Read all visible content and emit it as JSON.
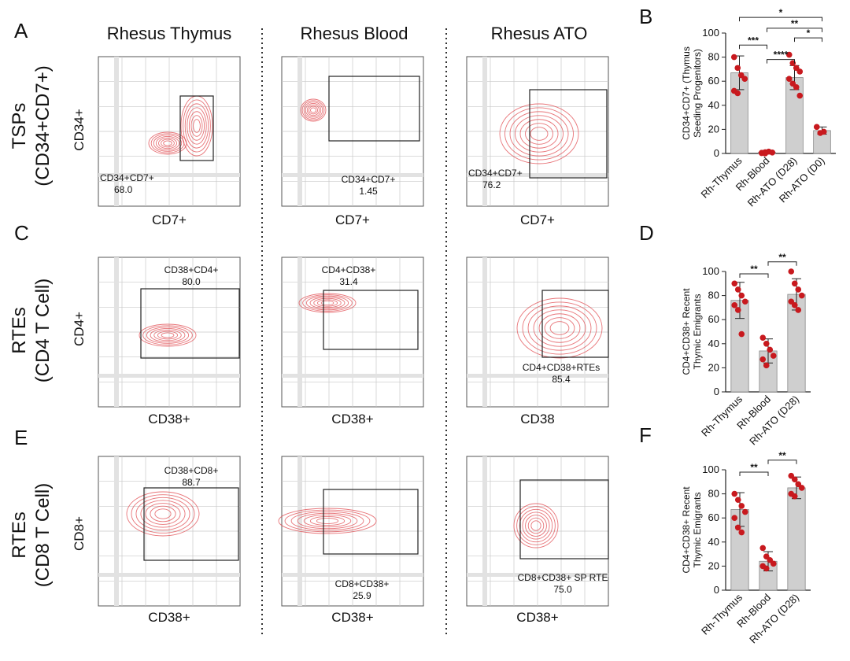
{
  "figure": {
    "columns": [
      "Rhesus Thymus",
      "Rhesus Blood",
      "Rhesus ATO"
    ],
    "panels": {
      "a": "A",
      "b": "B",
      "c": "C",
      "d": "D",
      "e": "E",
      "f": "F"
    },
    "rows": [
      {
        "line1": "TSPs",
        "line2": "(CD34+CD7+)",
        "ylabel": "CD34+"
      },
      {
        "line1": "RTEs",
        "line2": "(CD4 T Cell)",
        "ylabel": "CD4+"
      },
      {
        "line1": "RTEs",
        "line2": "(CD8 T Cell)",
        "ylabel": "CD8+"
      }
    ],
    "flow_xlabels": [
      [
        "CD7+",
        "CD7+",
        "CD7+"
      ],
      [
        "CD38+",
        "CD38+",
        "CD38"
      ],
      [
        "CD38+",
        "CD38+",
        "CD38+"
      ]
    ],
    "gates": [
      [
        {
          "name": "CD34+CD7+",
          "value": "68.0"
        },
        {
          "name": "CD34+CD7+",
          "value": "1.45"
        },
        {
          "name": "CD34+CD7+",
          "value": "76.2"
        }
      ],
      [
        {
          "name": "CD38+CD4+",
          "value": "80.0"
        },
        {
          "name": "CD4+CD38+",
          "value": "31.4"
        },
        {
          "name": "CD4+CD38+RTEs",
          "value": "85.4"
        }
      ],
      [
        {
          "name": "CD38+CD8+",
          "value": "88.7"
        },
        {
          "name": "CD8+CD38+",
          "value": "25.9"
        },
        {
          "name": "CD8+CD38+ SP RTE",
          "value": "75.0"
        }
      ]
    ],
    "colors": {
      "contour": "#e0474c",
      "dot": "#c8191e",
      "bar": "#cfcfcf",
      "grid": "#c8c8c8"
    }
  },
  "chart_data": [
    {
      "id": "B",
      "type": "bar",
      "categories": [
        "Rh-Thymus",
        "Rh-Blood",
        "Rh-ATO (D28)",
        "Rh-ATO (D0)"
      ],
      "values": [
        67,
        1,
        63,
        19
      ],
      "errors": [
        14,
        1.5,
        10,
        3
      ],
      "points": [
        [
          80,
          71,
          65,
          62,
          52,
          50
        ],
        [
          0.5,
          1,
          1.5,
          0.8,
          0.3,
          0
        ],
        [
          82,
          75,
          71,
          68,
          62,
          58,
          55,
          48
        ],
        [
          22,
          17,
          18
        ]
      ],
      "ylabel": "CD34+CD7+ (Thymus Seeding Progenitors)",
      "ylim": [
        0,
        100
      ],
      "yticks": [
        "0",
        "20",
        "40",
        "60",
        "80",
        "100"
      ],
      "significance": [
        {
          "from": 0,
          "to": 1,
          "label": "***",
          "level": 90
        },
        {
          "from": 1,
          "to": 2,
          "label": "****",
          "level": 78
        },
        {
          "from": 0,
          "to": 3,
          "label": "*",
          "level": 113
        },
        {
          "from": 1,
          "to": 3,
          "label": "**",
          "level": 104
        },
        {
          "from": 2,
          "to": 3,
          "label": "*",
          "level": 96
        }
      ]
    },
    {
      "id": "D",
      "type": "bar",
      "categories": [
        "Rh-Thymus",
        "Rh-Blood",
        "Rh-ATO (D28)"
      ],
      "values": [
        76,
        34,
        81
      ],
      "errors": [
        15,
        10,
        13
      ],
      "points": [
        [
          90,
          85,
          80,
          75,
          72,
          68,
          48
        ],
        [
          45,
          40,
          35,
          30,
          27,
          22
        ],
        [
          100,
          90,
          85,
          80,
          75,
          72,
          68
        ]
      ],
      "ylabel": "CD4+CD38+ Recent Thymic Emigrants",
      "ylim": [
        0,
        100
      ],
      "yticks": [
        "0",
        "20",
        "40",
        "60",
        "80",
        "100"
      ],
      "significance": [
        {
          "from": 0,
          "to": 1,
          "label": "**",
          "level": 98
        },
        {
          "from": 1,
          "to": 2,
          "label": "**",
          "level": 108
        }
      ]
    },
    {
      "id": "F",
      "type": "bar",
      "categories": [
        "Rh-Thymus",
        "Rh-Blood",
        "Rh-ATO (D28)"
      ],
      "values": [
        67,
        24,
        85
      ],
      "errors": [
        14,
        8,
        9
      ],
      "points": [
        [
          80,
          75,
          70,
          65,
          60,
          52,
          48
        ],
        [
          35,
          28,
          25,
          22,
          20,
          18
        ],
        [
          95,
          92,
          88,
          85,
          80,
          78
        ]
      ],
      "ylabel": "CD4+CD38+ Recent Thymic Emigrants",
      "ylim": [
        0,
        100
      ],
      "yticks": [
        "0",
        "20",
        "40",
        "60",
        "80",
        "100"
      ],
      "significance": [
        {
          "from": 0,
          "to": 1,
          "label": "**",
          "level": 98
        },
        {
          "from": 1,
          "to": 2,
          "label": "**",
          "level": 108
        }
      ]
    }
  ]
}
